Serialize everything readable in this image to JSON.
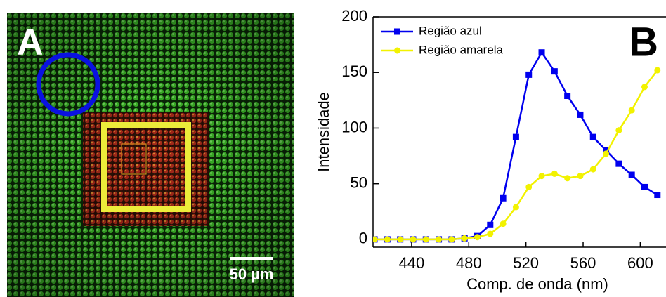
{
  "image": {
    "label": "A",
    "scale_bar": "50 µm"
  },
  "chart_data": {
    "type": "line",
    "annotations": [
      "B"
    ],
    "x_label": "Comp. de onda (nm)",
    "y_label": "Intensidade",
    "x": [
      414,
      423,
      432,
      441,
      450,
      459,
      468,
      477,
      486,
      495,
      504,
      513,
      522,
      531,
      540,
      549,
      558,
      567,
      576,
      585,
      594,
      603,
      612
    ],
    "series": [
      {
        "name": "Região azul",
        "color": "#0000ee",
        "marker": "square",
        "values": [
          0,
          0,
          0,
          0,
          0,
          0,
          0,
          1,
          3,
          13,
          37,
          92,
          148,
          168,
          151,
          129,
          112,
          92,
          80,
          68,
          58,
          47,
          40
        ]
      },
      {
        "name": "Região amarela",
        "color": "#f2f200",
        "marker": "circle",
        "values": [
          0,
          0,
          0,
          0,
          0,
          0,
          0,
          1,
          2,
          5,
          14,
          29,
          47,
          57,
          59,
          55,
          57,
          63,
          77,
          98,
          116,
          137,
          152
        ]
      }
    ],
    "xlim": [
      413,
      618
    ],
    "ylim": [
      -7,
      200
    ],
    "xticks": [
      440,
      480,
      520,
      560,
      600
    ],
    "yticks": [
      0,
      50,
      100,
      150,
      200
    ],
    "legend": "upper left"
  }
}
